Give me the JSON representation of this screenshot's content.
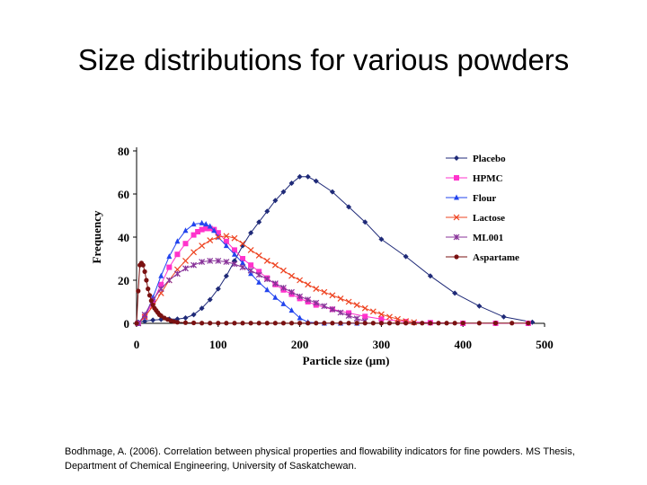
{
  "slide": {
    "title": "Size distributions for various powders",
    "citation": "Bodhmage, A. (2006). Correlation between physical properties and flowability indicators for fine powders. MS Thesis, Department of Chemical Engineering, University of Saskatchewan."
  },
  "chart_data": {
    "type": "line",
    "title": "",
    "xlabel": "Particle size (μm)",
    "ylabel": "Frequency",
    "xlim": [
      0,
      500
    ],
    "ylim": [
      0,
      80
    ],
    "xticks": [
      "0",
      "100",
      "200",
      "300",
      "400",
      "500"
    ],
    "yticks": [
      "0",
      "20",
      "40",
      "60",
      "80"
    ],
    "grid": false,
    "legend": "top-right",
    "series": [
      {
        "name": "Placebo",
        "color": "#1f2a78",
        "marker": "diamond",
        "x": [
          2,
          10,
          20,
          30,
          40,
          50,
          60,
          70,
          80,
          90,
          100,
          110,
          120,
          130,
          140,
          150,
          160,
          170,
          180,
          190,
          200,
          210,
          220,
          240,
          260,
          280,
          300,
          330,
          360,
          390,
          420,
          450,
          485
        ],
        "y": [
          0.5,
          1,
          1.5,
          1.8,
          2,
          2,
          2.5,
          4,
          7,
          11,
          16,
          22,
          29,
          36,
          42,
          47,
          52,
          57,
          61,
          65,
          68,
          68,
          66,
          61,
          54,
          47,
          39,
          31,
          22,
          14,
          8,
          3,
          0.5
        ]
      },
      {
        "name": "HPMC",
        "color": "#ff33cc",
        "marker": "square",
        "x": [
          2,
          10,
          20,
          30,
          40,
          50,
          60,
          70,
          75,
          80,
          85,
          90,
          95,
          100,
          110,
          120,
          130,
          140,
          150,
          160,
          170,
          180,
          190,
          200,
          210,
          220,
          240,
          260,
          280,
          300,
          330,
          360,
          400,
          440,
          480
        ],
        "y": [
          0,
          3,
          10,
          18,
          26,
          32,
          37,
          41,
          42.5,
          43.5,
          44,
          44,
          43.5,
          42,
          38,
          34,
          30,
          27,
          24,
          21,
          18,
          15.5,
          13.5,
          11.5,
          10,
          8.5,
          6.5,
          4.8,
          3.2,
          2,
          0.8,
          0.3,
          0,
          0,
          0
        ]
      },
      {
        "name": "Flour",
        "color": "#2244ee",
        "marker": "triangle",
        "x": [
          2,
          10,
          20,
          30,
          40,
          50,
          60,
          70,
          80,
          85,
          90,
          95,
          100,
          110,
          120,
          130,
          140,
          150,
          160,
          170,
          180,
          190,
          200,
          210,
          230,
          250,
          270
        ],
        "y": [
          0,
          3,
          12,
          22,
          31,
          38,
          43,
          46,
          46.5,
          46,
          45,
          43,
          40,
          36,
          32,
          28,
          23,
          19,
          15.5,
          12,
          9,
          6,
          2.5,
          0.5,
          0,
          0,
          0
        ]
      },
      {
        "name": "Lactose",
        "color": "#ee4422",
        "marker": "x",
        "x": [
          2,
          10,
          20,
          30,
          40,
          50,
          60,
          70,
          80,
          90,
          100,
          110,
          120,
          130,
          140,
          150,
          160,
          170,
          180,
          190,
          200,
          210,
          220,
          230,
          240,
          250,
          260,
          270,
          280,
          290,
          300,
          310,
          320,
          330,
          340
        ],
        "y": [
          0,
          3,
          8,
          14,
          20,
          25,
          29,
          33,
          36,
          38.5,
          40,
          40.5,
          39.5,
          37,
          34,
          31.5,
          29,
          27,
          24.5,
          22,
          20,
          18,
          16,
          14.5,
          13,
          11.5,
          10,
          8.5,
          7,
          5.5,
          4.2,
          3,
          2,
          1,
          0.5
        ]
      },
      {
        "name": "ML001",
        "color": "#883399",
        "marker": "asterisk",
        "x": [
          2,
          10,
          20,
          30,
          40,
          50,
          60,
          70,
          80,
          90,
          100,
          110,
          120,
          130,
          140,
          150,
          160,
          170,
          180,
          190,
          200,
          210,
          220,
          230,
          240,
          250,
          260,
          270,
          280
        ],
        "y": [
          0,
          4,
          11,
          16,
          20,
          23,
          25.5,
          27,
          28.5,
          29,
          29,
          28.5,
          27.5,
          26,
          24.5,
          22.5,
          20.5,
          18.5,
          16.5,
          14.5,
          12.5,
          11,
          9.5,
          8,
          6.5,
          5,
          3.5,
          2.2,
          1
        ]
      },
      {
        "name": "Aspartame",
        "color": "#7a1111",
        "marker": "circle",
        "x": [
          0,
          2,
          4,
          6,
          8,
          10,
          12,
          14,
          16,
          18,
          20,
          22,
          24,
          26,
          28,
          30,
          34,
          38,
          42,
          46,
          50,
          60,
          70,
          80,
          90,
          100,
          110,
          120,
          130,
          140,
          150,
          160,
          170,
          180,
          190,
          200,
          210,
          220,
          230,
          240,
          250,
          260,
          270,
          280,
          290,
          300,
          310,
          320,
          330,
          340,
          350,
          360,
          370,
          380,
          390,
          400,
          420,
          440,
          460,
          480
        ],
        "y": [
          0,
          15,
          27,
          28,
          27,
          24,
          20,
          16,
          13,
          10.5,
          8.5,
          7,
          6,
          5,
          4,
          3.5,
          2.5,
          1.8,
          1.2,
          0.8,
          0.5,
          0.3,
          0.2,
          0.1,
          0.1,
          0.1,
          0.1,
          0.1,
          0.1,
          0.1,
          0.1,
          0.1,
          0.1,
          0.1,
          0.1,
          0.1,
          0.1,
          0.1,
          0.1,
          0.1,
          0.1,
          0.1,
          0.1,
          0.1,
          0.1,
          0.1,
          0.1,
          0.1,
          0.1,
          0.1,
          0.1,
          0.1,
          0.1,
          0.1,
          0.1,
          0.1,
          0.1,
          0.1,
          0.1,
          0.1
        ]
      }
    ]
  }
}
